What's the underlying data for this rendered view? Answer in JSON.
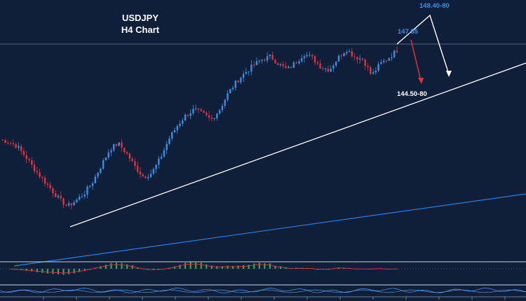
{
  "chart_data": {
    "type": "candlestick",
    "title": "USDJPY",
    "subtitle": "H4 Chart",
    "levels": {
      "resistance_target": "148.40-80",
      "current": "147.55",
      "support_target": "144.50-80"
    },
    "price_path": [
      141.45,
      141.3,
      141.0,
      140.3,
      139.5,
      138.8,
      138.1,
      137.4,
      136.9,
      137.3,
      137.8,
      138.6,
      139.7,
      140.8,
      141.2,
      140.5,
      139.6,
      138.9,
      139.2,
      140.2,
      141.5,
      142.4,
      143.1,
      143.5,
      143.2,
      142.8,
      143.5,
      144.6,
      145.4,
      146.0,
      146.5,
      146.9,
      147.1,
      146.6,
      146.2,
      146.7,
      147.3,
      147.0,
      146.4,
      146.2,
      147.0,
      147.6,
      147.1,
      146.9,
      145.8,
      146.6,
      147.0,
      147.55
    ],
    "colors": {
      "background": "#0f1f3a",
      "bull_candle": "#3a8ee6",
      "bear_candle": "#e0313c",
      "trendline": "#ffffff",
      "long_trendline": "#2a7de0",
      "level_label": "#3a8ee6",
      "down_arrow": "#e0313c",
      "histogram": "#3fae5a"
    }
  }
}
